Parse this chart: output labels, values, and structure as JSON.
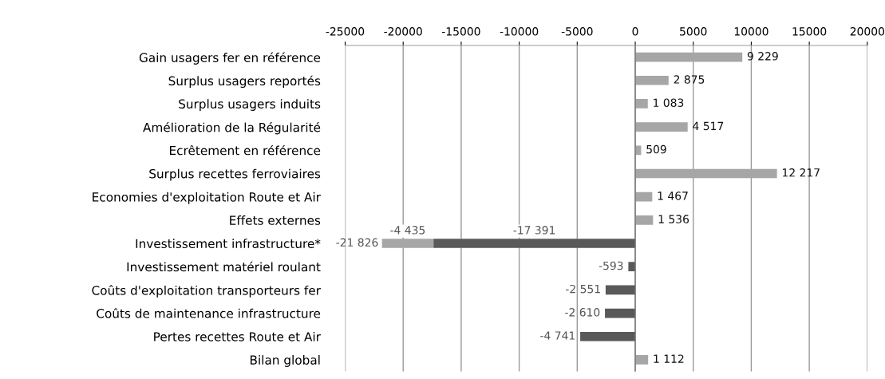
{
  "chart_data": {
    "type": "bar",
    "orientation": "horizontal",
    "stacked": true,
    "categories": [
      "Gain usagers fer en référence",
      "Surplus usagers reportés",
      "Surplus usagers induits",
      "Amélioration de la Régularité",
      "Ecrêtement en référence",
      "Surplus recettes ferroviaires",
      "Economies d'exploitation Route et Air",
      "Effets externes",
      "Investissement infrastructure*",
      "Investissement matériel roulant",
      "Coûts d'exploitation transporteurs fer",
      "Coûts de maintenance infrastructure",
      "Pertes recettes Route et Air",
      "Bilan global"
    ],
    "series": [
      {
        "values": [
          9229,
          2875,
          1083,
          4517,
          509,
          12217,
          1467,
          1536,
          -17391,
          -593,
          -2551,
          -2610,
          -4741,
          1112
        ],
        "colors": [
          "#a6a6a6",
          "#a6a6a6",
          "#a6a6a6",
          "#a6a6a6",
          "#a6a6a6",
          "#a6a6a6",
          "#a6a6a6",
          "#a6a6a6",
          "#595959",
          "#595959",
          "#595959",
          "#595959",
          "#595959",
          "#a6a6a6"
        ],
        "value_labels": [
          "9 229",
          "2 875",
          "1 083",
          "4 517",
          "509",
          "12 217",
          "1 467",
          "1 536",
          "-17 391",
          "-593",
          "-2 551",
          "-2 610",
          "-4 741",
          "1 112"
        ]
      },
      {
        "values": [
          null,
          null,
          null,
          null,
          null,
          null,
          null,
          null,
          -4435,
          null,
          null,
          null,
          null,
          null
        ],
        "color": "#a6a6a6",
        "value_labels": [
          null,
          null,
          null,
          null,
          null,
          null,
          null,
          null,
          "-4 435",
          null,
          null,
          null,
          null,
          null
        ]
      }
    ],
    "totals": [
      null,
      null,
      null,
      null,
      null,
      null,
      null,
      null,
      "-21 826",
      null,
      null,
      null,
      null,
      null
    ],
    "xlim": [
      -25000,
      20000
    ],
    "xticks": [
      -25000,
      -20000,
      -15000,
      -10000,
      -5000,
      0,
      5000,
      10000,
      15000,
      20000
    ],
    "grid": "x"
  }
}
